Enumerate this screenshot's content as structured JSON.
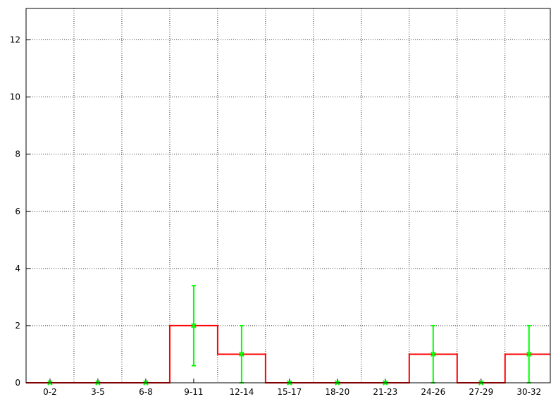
{
  "chart_data": {
    "type": "bar",
    "style": "step-histogram-with-error-bars",
    "categories": [
      "0-2",
      "3-5",
      "6-8",
      "9-11",
      "12-14",
      "15-17",
      "18-20",
      "21-23",
      "24-26",
      "27-29",
      "30-32"
    ],
    "series": [
      {
        "values": [
          0,
          0,
          0,
          2,
          1,
          0,
          0,
          0,
          1,
          0,
          1
        ],
        "error_low": [
          0,
          0,
          0,
          0.6,
          0,
          0,
          0,
          0,
          0,
          0,
          0
        ],
        "error_high": [
          0,
          0,
          0,
          3.4,
          2,
          0,
          0,
          0,
          2,
          0,
          2
        ],
        "color": "#ff0000",
        "error_color": "#00ff00"
      }
    ],
    "title": "",
    "xlabel": "",
    "ylabel": "",
    "ylim": [
      0,
      13.1
    ],
    "yticks": [
      0,
      2,
      4,
      6,
      8,
      10,
      12
    ],
    "grid": true,
    "legend": "none"
  }
}
